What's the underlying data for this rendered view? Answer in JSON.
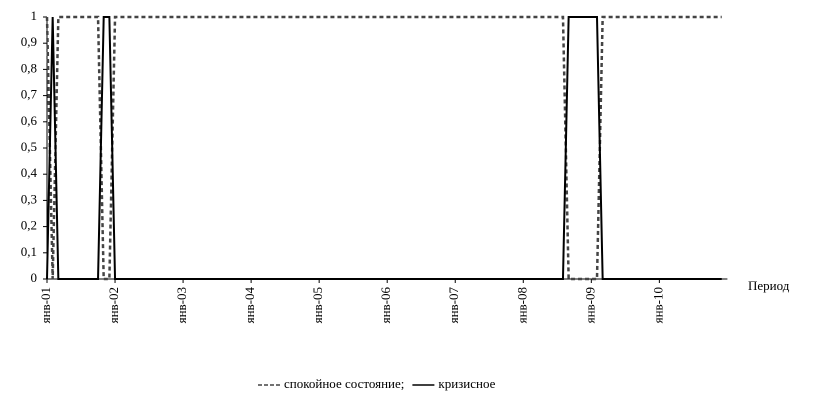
{
  "chart_data": {
    "type": "line",
    "x_label": "Период",
    "categories": [
      "янв-01",
      null,
      null,
      null,
      null,
      null,
      null,
      null,
      null,
      null,
      null,
      null,
      "янв-02",
      null,
      null,
      null,
      null,
      null,
      null,
      null,
      null,
      null,
      null,
      null,
      "янв-03",
      null,
      null,
      null,
      null,
      null,
      null,
      null,
      null,
      null,
      null,
      null,
      "янв-04",
      null,
      null,
      null,
      null,
      null,
      null,
      null,
      null,
      null,
      null,
      null,
      "янв-05",
      null,
      null,
      null,
      null,
      null,
      null,
      null,
      null,
      null,
      null,
      null,
      "янв-06",
      null,
      null,
      null,
      null,
      null,
      null,
      null,
      null,
      null,
      null,
      null,
      "янв-07",
      null,
      null,
      null,
      null,
      null,
      null,
      null,
      null,
      null,
      null,
      null,
      "янв-08",
      null,
      null,
      null,
      null,
      null,
      null,
      null,
      null,
      null,
      null,
      null,
      "янв-09",
      null,
      null,
      null,
      null,
      null,
      null,
      null,
      null,
      null,
      null,
      null,
      "янв-10",
      null,
      null,
      null,
      null,
      null,
      null,
      null,
      null,
      null,
      null,
      null
    ],
    "series": [
      {
        "name": "спокойное состояние;",
        "color": "#444444",
        "style": "dashed",
        "values": [
          1,
          0,
          1,
          1,
          1,
          1,
          1,
          1,
          1,
          1,
          0,
          0,
          1,
          1,
          1,
          1,
          1,
          1,
          1,
          1,
          1,
          1,
          1,
          1,
          1,
          1,
          1,
          1,
          1,
          1,
          1,
          1,
          1,
          1,
          1,
          1,
          1,
          1,
          1,
          1,
          1,
          1,
          1,
          1,
          1,
          1,
          1,
          1,
          1,
          1,
          1,
          1,
          1,
          1,
          1,
          1,
          1,
          1,
          1,
          1,
          1,
          1,
          1,
          1,
          1,
          1,
          1,
          1,
          1,
          1,
          1,
          1,
          1,
          1,
          1,
          1,
          1,
          1,
          1,
          1,
          1,
          1,
          1,
          1,
          1,
          1,
          1,
          1,
          1,
          1,
          1,
          1,
          0,
          0,
          0,
          0,
          0,
          0,
          1,
          1,
          1,
          1,
          1,
          1,
          1,
          1,
          1,
          1,
          1,
          1,
          1,
          1,
          1,
          1,
          1,
          1,
          1,
          1,
          1,
          1
        ]
      },
      {
        "name": "кризисное",
        "color": "#000000",
        "style": "solid",
        "values": [
          0,
          1,
          0,
          0,
          0,
          0,
          0,
          0,
          0,
          0,
          1,
          1,
          0,
          0,
          0,
          0,
          0,
          0,
          0,
          0,
          0,
          0,
          0,
          0,
          0,
          0,
          0,
          0,
          0,
          0,
          0,
          0,
          0,
          0,
          0,
          0,
          0,
          0,
          0,
          0,
          0,
          0,
          0,
          0,
          0,
          0,
          0,
          0,
          0,
          0,
          0,
          0,
          0,
          0,
          0,
          0,
          0,
          0,
          0,
          0,
          0,
          0,
          0,
          0,
          0,
          0,
          0,
          0,
          0,
          0,
          0,
          0,
          0,
          0,
          0,
          0,
          0,
          0,
          0,
          0,
          0,
          0,
          0,
          0,
          0,
          0,
          0,
          0,
          0,
          0,
          0,
          0,
          1,
          1,
          1,
          1,
          1,
          1,
          0,
          0,
          0,
          0,
          0,
          0,
          0,
          0,
          0,
          0,
          0,
          0,
          0,
          0,
          0,
          0,
          0,
          0,
          0,
          0,
          0,
          0
        ]
      }
    ],
    "ylim": [
      0,
      1
    ],
    "yticks": [
      0,
      {
        "value": 0.1,
        "label": "0,1"
      },
      {
        "value": 0.2,
        "label": "0,2"
      },
      {
        "value": 0.3,
        "label": "0,3"
      },
      {
        "value": 0.4,
        "label": "0,4"
      },
      {
        "value": 0.5,
        "label": "0,5"
      },
      {
        "value": 0.6,
        "label": "0,6"
      },
      {
        "value": 0.7,
        "label": "0,7"
      },
      {
        "value": 0.8,
        "label": "0,8"
      },
      {
        "value": 0.9,
        "label": "0,9"
      },
      1
    ],
    "grid": false,
    "legend": "bottom"
  }
}
